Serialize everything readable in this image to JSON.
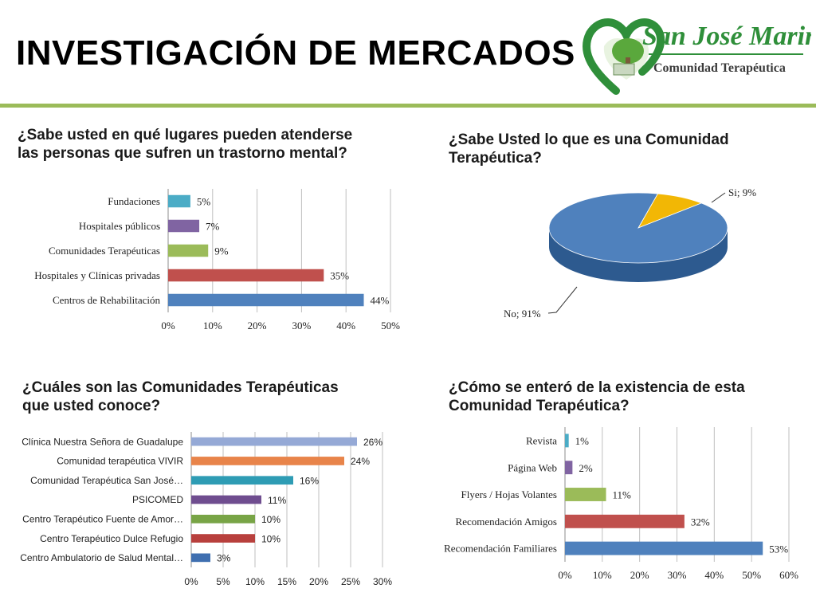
{
  "title": "INVESTIGACIÓN DE MERCADOS",
  "logo": {
    "name": "San José Marina",
    "tagline": "Comunidad Terapéutica"
  },
  "colors": {
    "rule": "#9bbb59",
    "logo_green": "#2f8f3a",
    "pie_no": "#4f81bd",
    "pie_si": "#f2b705"
  },
  "questions": {
    "q1": [
      "¿Sabe usted en qué lugares pueden atenderse",
      "las personas que sufren un trastorno mental?"
    ],
    "q2": [
      "¿Sabe Usted lo que es una Comunidad",
      "Terapéutica?"
    ],
    "q3": [
      "¿Cuáles son las Comunidades Terapéuticas",
      "que usted conoce?"
    ],
    "q4": [
      "¿Cómo se enteró de la existencia de esta",
      "Comunidad Terapéutica?"
    ]
  },
  "chart_data": [
    {
      "type": "bar",
      "orientation": "horizontal",
      "categories": [
        "Fundaciones",
        "Hospitales públicos",
        "Comunidades Terapéuticas",
        "Hospitales y Clínicas privadas",
        "Centros de Rehabilitación"
      ],
      "values": [
        5,
        7,
        9,
        35,
        44
      ],
      "data_labels": [
        "5%",
        "7%",
        "9%",
        "35%",
        "44%"
      ],
      "colors": [
        "#4bacc6",
        "#8064a2",
        "#9bbb59",
        "#c0504d",
        "#4f81bd"
      ],
      "xlim": [
        0,
        50
      ],
      "xticks": [
        "0%",
        "10%",
        "20%",
        "30%",
        "40%",
        "50%"
      ],
      "grid": true
    },
    {
      "type": "pie",
      "style": "3d",
      "labels": [
        "No",
        "Si"
      ],
      "values": [
        91,
        9
      ],
      "data_labels": [
        "No; 91%",
        "Si; 9%"
      ],
      "colors": [
        "#4f81bd",
        "#f2b705"
      ]
    },
    {
      "type": "bar",
      "orientation": "horizontal",
      "categories": [
        "Clínica Nuestra Señora de Guadalupe",
        "Comunidad terapéutica VIVIR",
        "Comunidad Terapéutica San José…",
        "PSICOMED",
        "Centro Terapéutico Fuente de Amor…",
        "Centro Terapéutico Dulce Refugio",
        "Centro Ambulatorio de Salud Mental…"
      ],
      "values": [
        26,
        24,
        16,
        11,
        10,
        10,
        3
      ],
      "data_labels": [
        "26%",
        "24%",
        "16%",
        "11%",
        "10%",
        "10%",
        "3%"
      ],
      "colors": [
        "#95a9d6",
        "#e8844a",
        "#2e9cb4",
        "#6f4d8f",
        "#78a446",
        "#b8403d",
        "#3f6fb0"
      ],
      "xlim": [
        0,
        30
      ],
      "xticks": [
        "0%",
        "5%",
        "10%",
        "15%",
        "20%",
        "25%",
        "30%"
      ],
      "grid": true
    },
    {
      "type": "bar",
      "orientation": "horizontal",
      "categories": [
        "Revista",
        "Página Web",
        "Flyers / Hojas Volantes",
        "Recomendación Amigos",
        "Recomendación Familiares"
      ],
      "values": [
        1,
        2,
        11,
        32,
        53
      ],
      "data_labels": [
        "1%",
        "2%",
        "11%",
        "32%",
        "53%"
      ],
      "colors": [
        "#4bacc6",
        "#8064a2",
        "#9bbb59",
        "#c0504d",
        "#4f81bd"
      ],
      "xlim": [
        0,
        60
      ],
      "xticks": [
        "0%",
        "10%",
        "20%",
        "30%",
        "40%",
        "50%",
        "60%"
      ],
      "grid": true
    }
  ]
}
